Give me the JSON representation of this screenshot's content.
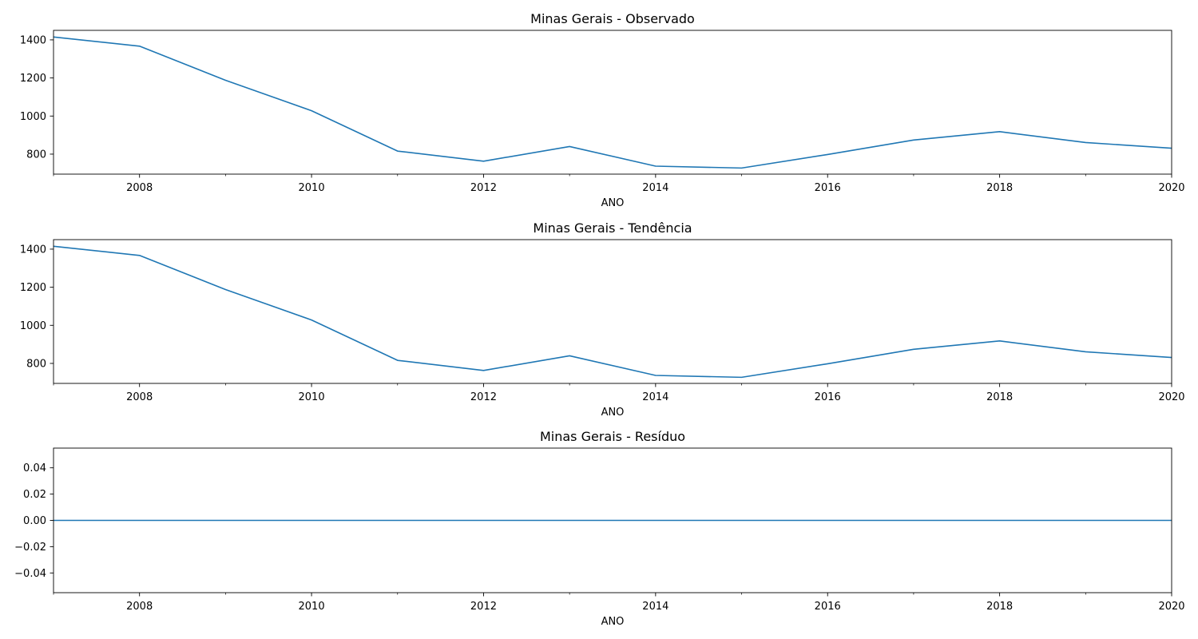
{
  "figure": {
    "background": "#ffffff",
    "line_color": "#1f77b4"
  },
  "chart_data": [
    {
      "type": "line",
      "title": "Minas Gerais - Observado",
      "xlabel": "ANO",
      "ylabel": "",
      "x": [
        2007,
        2008,
        2009,
        2010,
        2011,
        2012,
        2013,
        2014,
        2015,
        2016,
        2017,
        2018,
        2019,
        2020
      ],
      "series": [
        {
          "values": [
            1415,
            1367,
            1188,
            1028,
            816,
            763,
            840,
            737,
            727,
            798,
            874,
            918,
            861,
            831
          ]
        }
      ],
      "xlim": [
        2007,
        2020
      ],
      "ylim": [
        695,
        1450
      ],
      "xticks": [
        2008,
        2010,
        2012,
        2014,
        2016,
        2018,
        2020
      ],
      "xtick_labels": [
        "2008",
        "2010",
        "2012",
        "2014",
        "2016",
        "2018",
        "2020"
      ],
      "xticks_minor": [
        2007,
        2009,
        2011,
        2013,
        2015,
        2017,
        2019
      ],
      "yticks": [
        800,
        1000,
        1200,
        1400
      ],
      "ytick_labels": [
        "800",
        "1000",
        "1200",
        "1400"
      ],
      "grid": false,
      "legend": "none"
    },
    {
      "type": "line",
      "title": "Minas Gerais - Tendência",
      "xlabel": "ANO",
      "ylabel": "",
      "x": [
        2007,
        2008,
        2009,
        2010,
        2011,
        2012,
        2013,
        2014,
        2015,
        2016,
        2017,
        2018,
        2019,
        2020
      ],
      "series": [
        {
          "values": [
            1415,
            1367,
            1188,
            1028,
            816,
            763,
            840,
            737,
            727,
            798,
            874,
            918,
            861,
            831
          ]
        }
      ],
      "xlim": [
        2007,
        2020
      ],
      "ylim": [
        695,
        1450
      ],
      "xticks": [
        2008,
        2010,
        2012,
        2014,
        2016,
        2018,
        2020
      ],
      "xtick_labels": [
        "2008",
        "2010",
        "2012",
        "2014",
        "2016",
        "2018",
        "2020"
      ],
      "xticks_minor": [
        2007,
        2009,
        2011,
        2013,
        2015,
        2017,
        2019
      ],
      "yticks": [
        800,
        1000,
        1200,
        1400
      ],
      "ytick_labels": [
        "800",
        "1000",
        "1200",
        "1400"
      ],
      "grid": false,
      "legend": "none"
    },
    {
      "type": "line",
      "title": "Minas Gerais - Resíduo",
      "xlabel": "ANO",
      "ylabel": "",
      "x": [
        2007,
        2008,
        2009,
        2010,
        2011,
        2012,
        2013,
        2014,
        2015,
        2016,
        2017,
        2018,
        2019,
        2020
      ],
      "series": [
        {
          "values": [
            0,
            0,
            0,
            0,
            0,
            0,
            0,
            0,
            0,
            0,
            0,
            0,
            0,
            0
          ]
        }
      ],
      "xlim": [
        2007,
        2020
      ],
      "ylim": [
        -0.055,
        0.055
      ],
      "xticks": [
        2008,
        2010,
        2012,
        2014,
        2016,
        2018,
        2020
      ],
      "xtick_labels": [
        "2008",
        "2010",
        "2012",
        "2014",
        "2016",
        "2018",
        "2020"
      ],
      "xticks_minor": [
        2007,
        2009,
        2011,
        2013,
        2015,
        2017,
        2019
      ],
      "yticks": [
        -0.04,
        -0.02,
        0.0,
        0.02,
        0.04
      ],
      "ytick_labels": [
        "−0.04",
        "−0.02",
        "0.00",
        "0.02",
        "0.04"
      ],
      "grid": false,
      "legend": "none"
    }
  ]
}
